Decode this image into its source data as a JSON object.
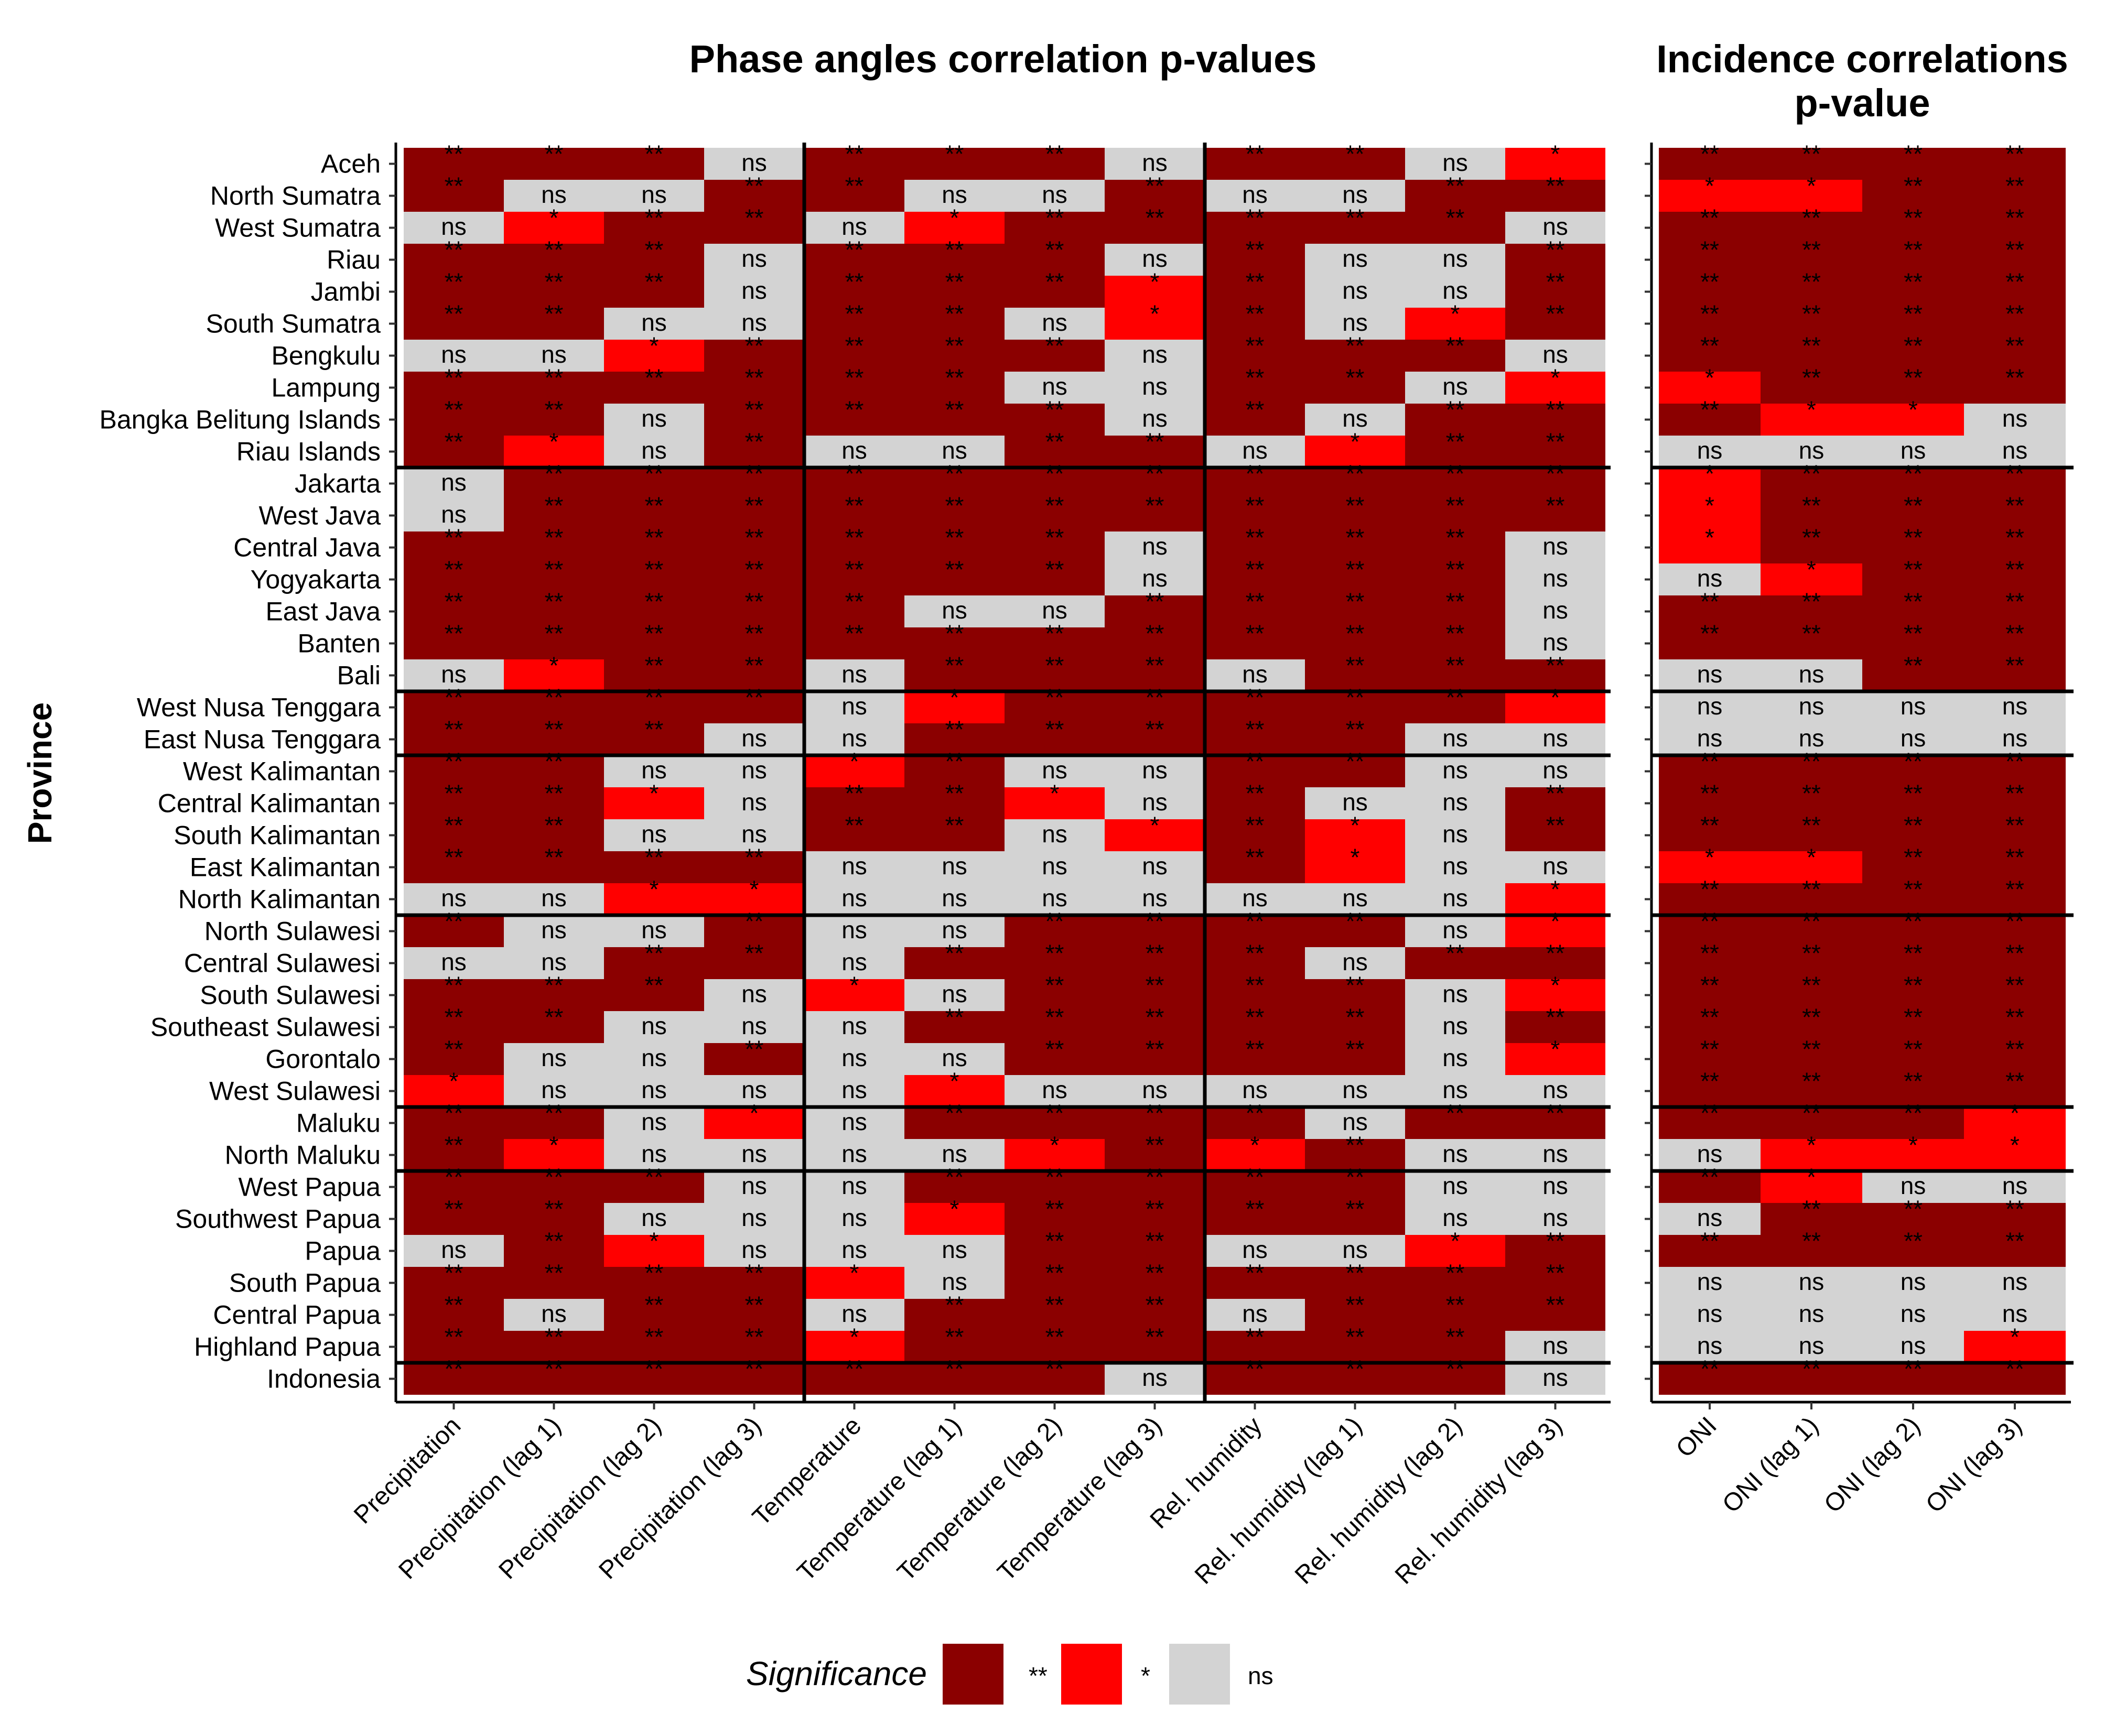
{
  "chart_data": [
    {
      "type": "heatmap",
      "title": "Phase angles correlation p-values",
      "xlabel": "",
      "ylabel": "Province",
      "x": [
        "Precipitation",
        "Precipitation (lag 1)",
        "Precipitation (lag 2)",
        "Precipitation (lag 3)",
        "Temperature",
        "Temperature (lag 1)",
        "Temperature (lag 2)",
        "Temperature (lag 3)",
        "Rel. humidity",
        "Rel. humidity (lag 1)",
        "Rel. humidity (lag 2)",
        "Rel. humidity (lag 3)"
      ],
      "y": [
        "Aceh",
        "North Sumatra",
        "West Sumatra",
        "Riau",
        "Jambi",
        "South Sumatra",
        "Bengkulu",
        "Lampung",
        "Bangka Belitung Islands",
        "Riau Islands",
        "Jakarta",
        "West Java",
        "Central Java",
        "Yogyakarta",
        "East Java",
        "Banten",
        "Bali",
        "West Nusa Tenggara",
        "East Nusa Tenggara",
        "West Kalimantan",
        "Central Kalimantan",
        "South Kalimantan",
        "East Kalimantan",
        "North Kalimantan",
        "North Sulawesi",
        "Central Sulawesi",
        "South Sulawesi",
        "Southeast Sulawesi",
        "Gorontalo",
        "West Sulawesi",
        "Maluku",
        "North Maluku",
        "West Papua",
        "Southwest Papua",
        "Papua",
        "South Papua",
        "Central Papua",
        "Highland Papua",
        "Indonesia"
      ],
      "values": [
        [
          "**",
          "**",
          "**",
          "ns",
          "**",
          "**",
          "**",
          "ns",
          "**",
          "**",
          "ns",
          "*"
        ],
        [
          "**",
          "ns",
          "ns",
          "**",
          "**",
          "ns",
          "ns",
          "**",
          "ns",
          "ns",
          "**",
          "**"
        ],
        [
          "ns",
          "*",
          "**",
          "**",
          "ns",
          "*",
          "**",
          "**",
          "**",
          "**",
          "**",
          "ns"
        ],
        [
          "**",
          "**",
          "**",
          "ns",
          "**",
          "**",
          "**",
          "ns",
          "**",
          "ns",
          "ns",
          "**"
        ],
        [
          "**",
          "**",
          "**",
          "ns",
          "**",
          "**",
          "**",
          "*",
          "**",
          "ns",
          "ns",
          "**"
        ],
        [
          "**",
          "**",
          "ns",
          "ns",
          "**",
          "**",
          "ns",
          "*",
          "**",
          "ns",
          "*",
          "**"
        ],
        [
          "ns",
          "ns",
          "*",
          "**",
          "**",
          "**",
          "**",
          "ns",
          "**",
          "**",
          "**",
          "ns"
        ],
        [
          "**",
          "**",
          "**",
          "**",
          "**",
          "**",
          "ns",
          "ns",
          "**",
          "**",
          "ns",
          "*"
        ],
        [
          "**",
          "**",
          "ns",
          "**",
          "**",
          "**",
          "**",
          "ns",
          "**",
          "ns",
          "**",
          "**"
        ],
        [
          "**",
          "*",
          "ns",
          "**",
          "ns",
          "ns",
          "**",
          "**",
          "ns",
          "*",
          "**",
          "**"
        ],
        [
          "ns",
          "**",
          "**",
          "**",
          "**",
          "**",
          "**",
          "**",
          "**",
          "**",
          "**",
          "**"
        ],
        [
          "ns",
          "**",
          "**",
          "**",
          "**",
          "**",
          "**",
          "**",
          "**",
          "**",
          "**",
          "**"
        ],
        [
          "**",
          "**",
          "**",
          "**",
          "**",
          "**",
          "**",
          "ns",
          "**",
          "**",
          "**",
          "ns"
        ],
        [
          "**",
          "**",
          "**",
          "**",
          "**",
          "**",
          "**",
          "ns",
          "**",
          "**",
          "**",
          "ns"
        ],
        [
          "**",
          "**",
          "**",
          "**",
          "**",
          "ns",
          "ns",
          "**",
          "**",
          "**",
          "**",
          "ns"
        ],
        [
          "**",
          "**",
          "**",
          "**",
          "**",
          "**",
          "**",
          "**",
          "**",
          "**",
          "**",
          "ns"
        ],
        [
          "ns",
          "*",
          "**",
          "**",
          "ns",
          "**",
          "**",
          "**",
          "ns",
          "**",
          "**",
          "**"
        ],
        [
          "**",
          "**",
          "**",
          "**",
          "ns",
          "*",
          "**",
          "**",
          "**",
          "**",
          "**",
          "*"
        ],
        [
          "**",
          "**",
          "**",
          "ns",
          "ns",
          "**",
          "**",
          "**",
          "**",
          "**",
          "ns",
          "ns"
        ],
        [
          "**",
          "**",
          "ns",
          "ns",
          "*",
          "**",
          "ns",
          "ns",
          "**",
          "**",
          "ns",
          "ns"
        ],
        [
          "**",
          "**",
          "*",
          "ns",
          "**",
          "**",
          "*",
          "ns",
          "**",
          "ns",
          "ns",
          "**"
        ],
        [
          "**",
          "**",
          "ns",
          "ns",
          "**",
          "**",
          "ns",
          "*",
          "**",
          "*",
          "ns",
          "**"
        ],
        [
          "**",
          "**",
          "**",
          "**",
          "ns",
          "ns",
          "ns",
          "ns",
          "**",
          "*",
          "ns",
          "ns"
        ],
        [
          "ns",
          "ns",
          "*",
          "*",
          "ns",
          "ns",
          "ns",
          "ns",
          "ns",
          "ns",
          "ns",
          "*"
        ],
        [
          "**",
          "ns",
          "ns",
          "**",
          "ns",
          "ns",
          "**",
          "**",
          "**",
          "**",
          "ns",
          "*"
        ],
        [
          "ns",
          "ns",
          "**",
          "**",
          "ns",
          "**",
          "**",
          "**",
          "**",
          "ns",
          "**",
          "**"
        ],
        [
          "**",
          "**",
          "**",
          "ns",
          "*",
          "ns",
          "**",
          "**",
          "**",
          "**",
          "ns",
          "*"
        ],
        [
          "**",
          "**",
          "ns",
          "ns",
          "ns",
          "**",
          "**",
          "**",
          "**",
          "**",
          "ns",
          "**"
        ],
        [
          "**",
          "ns",
          "ns",
          "**",
          "ns",
          "ns",
          "**",
          "**",
          "**",
          "**",
          "ns",
          "*"
        ],
        [
          "*",
          "ns",
          "ns",
          "ns",
          "ns",
          "*",
          "ns",
          "ns",
          "ns",
          "ns",
          "ns",
          "ns"
        ],
        [
          "**",
          "**",
          "ns",
          "*",
          "ns",
          "**",
          "**",
          "**",
          "**",
          "ns",
          "**",
          "**"
        ],
        [
          "**",
          "*",
          "ns",
          "ns",
          "ns",
          "ns",
          "*",
          "**",
          "*",
          "**",
          "ns",
          "ns"
        ],
        [
          "**",
          "**",
          "**",
          "ns",
          "ns",
          "**",
          "**",
          "**",
          "**",
          "**",
          "ns",
          "ns"
        ],
        [
          "**",
          "**",
          "ns",
          "ns",
          "ns",
          "*",
          "**",
          "**",
          "**",
          "**",
          "ns",
          "ns"
        ],
        [
          "ns",
          "**",
          "*",
          "ns",
          "ns",
          "ns",
          "**",
          "**",
          "ns",
          "ns",
          "*",
          "**"
        ],
        [
          "**",
          "**",
          "**",
          "**",
          "*",
          "ns",
          "**",
          "**",
          "**",
          "**",
          "**",
          "**"
        ],
        [
          "**",
          "ns",
          "**",
          "**",
          "ns",
          "**",
          "**",
          "**",
          "ns",
          "**",
          "**",
          "**"
        ],
        [
          "**",
          "**",
          "**",
          "**",
          "*",
          "**",
          "**",
          "**",
          "**",
          "**",
          "**",
          "ns"
        ],
        [
          "**",
          "**",
          "**",
          "**",
          "**",
          "**",
          "**",
          "ns",
          "**",
          "**",
          "**",
          "ns"
        ]
      ],
      "x_groups": [
        [
          "Precipitation",
          4
        ],
        [
          "Temperature",
          4
        ],
        [
          "Rel. humidity",
          4
        ]
      ],
      "row_group_breaks_after": [
        "Riau Islands",
        "Bali",
        "East Nusa Tenggara",
        "North Kalimantan",
        "West Sulawesi",
        "North Maluku",
        "Highland Papua"
      ]
    },
    {
      "type": "heatmap",
      "title": "Incidence correlations p-value",
      "x": [
        "ONI",
        "ONI (lag 1)",
        "ONI (lag 2)",
        "ONI (lag 3)"
      ],
      "values": [
        [
          "**",
          "**",
          "**",
          "**"
        ],
        [
          "*",
          "*",
          "**",
          "**"
        ],
        [
          "**",
          "**",
          "**",
          "**"
        ],
        [
          "**",
          "**",
          "**",
          "**"
        ],
        [
          "**",
          "**",
          "**",
          "**"
        ],
        [
          "**",
          "**",
          "**",
          "**"
        ],
        [
          "**",
          "**",
          "**",
          "**"
        ],
        [
          "*",
          "**",
          "**",
          "**"
        ],
        [
          "**",
          "*",
          "*",
          "ns"
        ],
        [
          "ns",
          "ns",
          "ns",
          "ns"
        ],
        [
          "*",
          "**",
          "**",
          "**"
        ],
        [
          "*",
          "**",
          "**",
          "**"
        ],
        [
          "*",
          "**",
          "**",
          "**"
        ],
        [
          "ns",
          "*",
          "**",
          "**"
        ],
        [
          "**",
          "**",
          "**",
          "**"
        ],
        [
          "**",
          "**",
          "**",
          "**"
        ],
        [
          "ns",
          "ns",
          "**",
          "**"
        ],
        [
          "ns",
          "ns",
          "ns",
          "ns"
        ],
        [
          "ns",
          "ns",
          "ns",
          "ns"
        ],
        [
          "**",
          "**",
          "**",
          "**"
        ],
        [
          "**",
          "**",
          "**",
          "**"
        ],
        [
          "**",
          "**",
          "**",
          "**"
        ],
        [
          "*",
          "*",
          "**",
          "**"
        ],
        [
          "**",
          "**",
          "**",
          "**"
        ],
        [
          "**",
          "**",
          "**",
          "**"
        ],
        [
          "**",
          "**",
          "**",
          "**"
        ],
        [
          "**",
          "**",
          "**",
          "**"
        ],
        [
          "**",
          "**",
          "**",
          "**"
        ],
        [
          "**",
          "**",
          "**",
          "**"
        ],
        [
          "**",
          "**",
          "**",
          "**"
        ],
        [
          "**",
          "**",
          "**",
          "*"
        ],
        [
          "ns",
          "*",
          "*",
          "*"
        ],
        [
          "**",
          "*",
          "ns",
          "ns"
        ],
        [
          "ns",
          "**",
          "**",
          "**"
        ],
        [
          "**",
          "**",
          "**",
          "**"
        ],
        [
          "ns",
          "ns",
          "ns",
          "ns"
        ],
        [
          "ns",
          "ns",
          "ns",
          "ns"
        ],
        [
          "ns",
          "ns",
          "ns",
          "*"
        ],
        [
          "**",
          "**",
          "**",
          "**"
        ]
      ]
    }
  ],
  "titles": {
    "left": "Phase angles correlation p-values",
    "right_line1": "Incidence correlations",
    "right_line2": "p-value"
  },
  "axis": {
    "y_title": "Province"
  },
  "legend": {
    "title": "Significance",
    "placement": "bottom",
    "items": [
      {
        "label": "**",
        "color": "#8B0000"
      },
      {
        "label": "*",
        "color": "#FF0000"
      },
      {
        "label": "ns",
        "color": "#D3D3D3"
      }
    ]
  },
  "colors": {
    "**": "#8B0000",
    "*": "#FF0000",
    "ns": "#D3D3D3"
  }
}
